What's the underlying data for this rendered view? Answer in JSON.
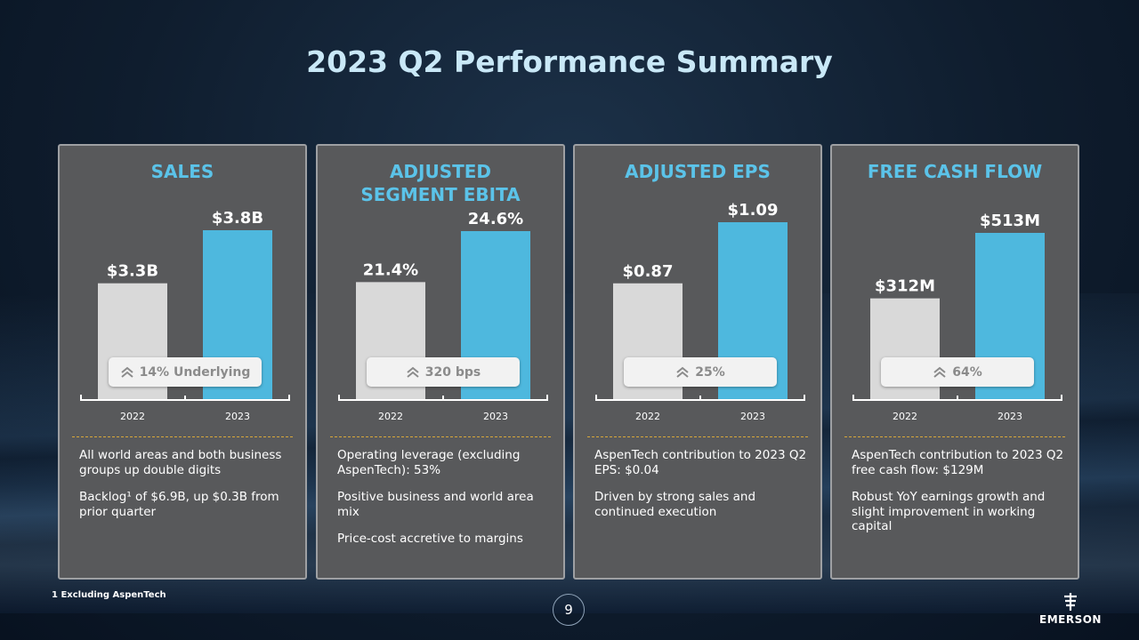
{
  "title": "2023 Q2 Performance Summary",
  "colors": {
    "bar_2022": "#d9d9d9",
    "bar_2023": "#4eb8de",
    "card_title": "#5bc3e9",
    "divider": "#d8a83a"
  },
  "chart_data": [
    {
      "type": "bar",
      "title": "SALES",
      "categories": [
        "2022",
        "2023"
      ],
      "values": [
        3.3,
        3.8
      ],
      "labels": [
        "$3.3B",
        "$3.8B"
      ],
      "badge": "14% Underlying"
    },
    {
      "type": "bar",
      "title": "ADJUSTED SEGMENT EBITA",
      "categories": [
        "2022",
        "2023"
      ],
      "values": [
        21.4,
        24.6
      ],
      "labels": [
        "21.4%",
        "24.6%"
      ],
      "badge": "320 bps"
    },
    {
      "type": "bar",
      "title": "ADJUSTED EPS",
      "categories": [
        "2022",
        "2023"
      ],
      "values": [
        0.87,
        1.09
      ],
      "labels": [
        "$0.87",
        "$1.09"
      ],
      "badge": "25%"
    },
    {
      "type": "bar",
      "title": "FREE CASH FLOW",
      "categories": [
        "2022",
        "2023"
      ],
      "values": [
        312,
        513
      ],
      "labels": [
        "$312M",
        "$513M"
      ],
      "badge": "64%"
    }
  ],
  "cards": [
    {
      "bullets": [
        "All world areas and both business groups up double digits",
        "Backlog¹ of $6.9B, up $0.3B from prior quarter"
      ]
    },
    {
      "bullets": [
        "Operating leverage (excluding AspenTech): 53%",
        "Positive business and world area mix",
        "Price-cost accretive to margins"
      ]
    },
    {
      "bullets": [
        "AspenTech contribution to 2023 Q2 EPS: $0.04",
        "Driven by strong sales and continued execution"
      ]
    },
    {
      "bullets": [
        "AspenTech contribution to 2023 Q2 free cash flow: $129M",
        "Robust YoY earnings growth and slight improvement in working capital"
      ]
    }
  ],
  "footnote": "1 Excluding AspenTech",
  "page_number": "9",
  "logo_text": "EMERSON",
  "icons": {
    "badge": "double-chevron-up-icon",
    "logo": "emerson-logo-icon"
  }
}
